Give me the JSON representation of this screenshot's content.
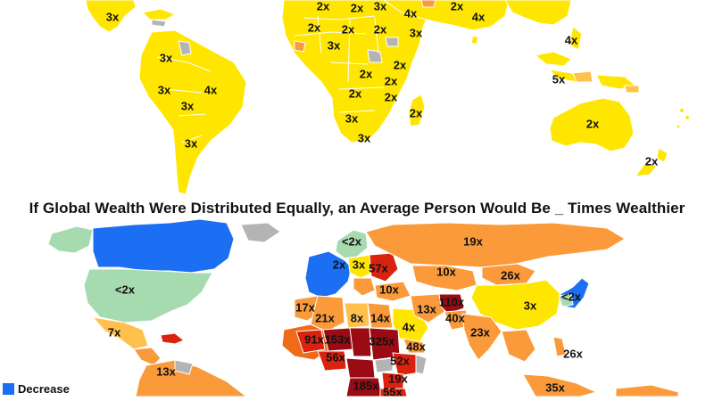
{
  "title": "If Global Wealth Were Distributed Equally, an Average Person Would Be _ Times Wealthier",
  "legend": {
    "label": "Decrease",
    "color": "#1c6ef2"
  },
  "colors": {
    "ocean": "#ffffff",
    "yellow": "#ffe600",
    "light_orange": "#ffc04d",
    "orange": "#fa9a3a",
    "dark_orange": "#f06a1a",
    "red": "#d9230f",
    "dark_red": "#9a0b14",
    "blue": "#1c6ef2",
    "light_green": "#a6dbb0",
    "no_data": "#b4b4b4",
    "border": "#ffffff"
  },
  "top_map": {
    "labels": [
      {
        "region": "central-america",
        "text": "3x"
      },
      {
        "region": "north-africa-1",
        "text": "2x"
      },
      {
        "region": "north-africa-2",
        "text": "2x"
      },
      {
        "region": "north-africa-3",
        "text": "3x"
      },
      {
        "region": "middle-east",
        "text": "4x"
      },
      {
        "region": "india",
        "text": "2x"
      },
      {
        "region": "se-asia",
        "text": "4x"
      },
      {
        "region": "west-africa-1",
        "text": "2x"
      },
      {
        "region": "west-africa-2",
        "text": "2x"
      },
      {
        "region": "sahel",
        "text": "2x"
      },
      {
        "region": "east-africa",
        "text": "3x"
      },
      {
        "region": "central-africa-1",
        "text": "3x"
      },
      {
        "region": "colombia",
        "text": "3x"
      },
      {
        "region": "horn",
        "text": "2x"
      },
      {
        "region": "ecuador-peru",
        "text": "3x"
      },
      {
        "region": "brazil",
        "text": "4x"
      },
      {
        "region": "peru",
        "text": "3x"
      },
      {
        "region": "congo",
        "text": "2x"
      },
      {
        "region": "angola",
        "text": "2x"
      },
      {
        "region": "tanzania",
        "text": "2x"
      },
      {
        "region": "mozambique",
        "text": "2x"
      },
      {
        "region": "madagascar",
        "text": "2x"
      },
      {
        "region": "namibia",
        "text": "3x"
      },
      {
        "region": "south-africa",
        "text": "3x"
      },
      {
        "region": "argentina",
        "text": "3x"
      },
      {
        "region": "indonesia",
        "text": "4x"
      },
      {
        "region": "png",
        "text": "5x"
      },
      {
        "region": "australia",
        "text": "2x"
      },
      {
        "region": "new-zealand",
        "text": "2x"
      }
    ]
  },
  "bottom_map": {
    "labels": [
      {
        "region": "canada",
        "text": "",
        "color": "blue"
      },
      {
        "region": "usa",
        "text": "<2x",
        "color": "light_green"
      },
      {
        "region": "mexico",
        "text": "7x",
        "color": "light_orange"
      },
      {
        "region": "colombia",
        "text": "13x",
        "color": "orange"
      },
      {
        "region": "scandinavia",
        "text": "<2x",
        "color": "light_green"
      },
      {
        "region": "western-europe",
        "text": "2x",
        "color": "blue"
      },
      {
        "region": "central-europe",
        "text": "3x",
        "color": "yellow"
      },
      {
        "region": "ukraine",
        "text": "57x",
        "color": "red"
      },
      {
        "region": "turkey",
        "text": "10x",
        "color": "orange"
      },
      {
        "region": "russia",
        "text": "19x",
        "color": "orange"
      },
      {
        "region": "kazakhstan",
        "text": "10x",
        "color": "orange"
      },
      {
        "region": "mongolia",
        "text": "26x",
        "color": "orange"
      },
      {
        "region": "china",
        "text": "3x",
        "color": "yellow"
      },
      {
        "region": "korea-japan",
        "text": "<2x",
        "color": "light_green"
      },
      {
        "region": "morocco",
        "text": "17x",
        "color": "orange"
      },
      {
        "region": "algeria",
        "text": "21x",
        "color": "orange"
      },
      {
        "region": "libya",
        "text": "8x",
        "color": "light_orange"
      },
      {
        "region": "egypt",
        "text": "14x",
        "color": "orange"
      },
      {
        "region": "iran",
        "text": "13x",
        "color": "orange"
      },
      {
        "region": "afghanistan",
        "text": "110x",
        "color": "dark_red"
      },
      {
        "region": "pakistan",
        "text": "40x",
        "color": "orange"
      },
      {
        "region": "india",
        "text": "23x",
        "color": "orange"
      },
      {
        "region": "saudi",
        "text": "4x",
        "color": "yellow"
      },
      {
        "region": "yemen",
        "text": "48x",
        "color": "orange"
      },
      {
        "region": "mali",
        "text": "91x",
        "color": "red"
      },
      {
        "region": "niger",
        "text": "153x",
        "color": "dark_red"
      },
      {
        "region": "sudan",
        "text": "325x",
        "color": "dark_red"
      },
      {
        "region": "nigeria",
        "text": "56x",
        "color": "red"
      },
      {
        "region": "ethiopia",
        "text": "52x",
        "color": "red"
      },
      {
        "region": "drc",
        "text": "185x",
        "color": "dark_red"
      },
      {
        "region": "kenya",
        "text": "19x",
        "color": "orange"
      },
      {
        "region": "tanzania",
        "text": "55x",
        "color": "red"
      },
      {
        "region": "philippines",
        "text": "26x",
        "color": "orange"
      },
      {
        "region": "indonesia",
        "text": "35x",
        "color": "orange"
      }
    ]
  }
}
